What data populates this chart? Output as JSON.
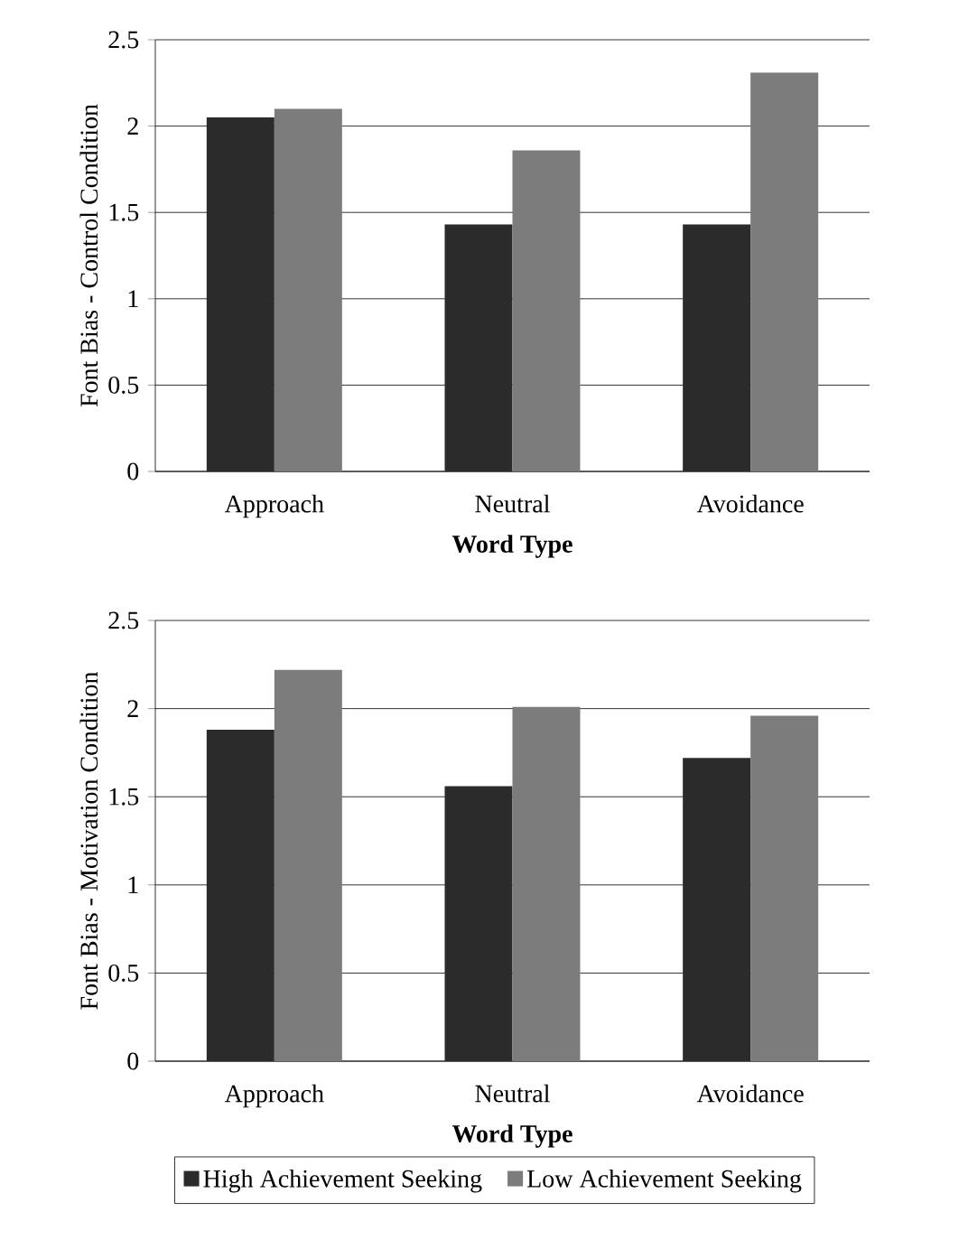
{
  "chart_data": [
    {
      "type": "bar",
      "categories": [
        "Approach",
        "Neutral",
        "Avoidance"
      ],
      "xlabel": "Word Type",
      "ylabel": "Font Bias - Control Condition",
      "ylim": [
        0,
        2.5
      ],
      "yticks": [
        0,
        0.5,
        1,
        1.5,
        2,
        2.5
      ],
      "grid": "y",
      "series": [
        {
          "color": "#2b2b2b",
          "values": [
            2.05,
            1.43,
            1.43
          ]
        },
        {
          "color": "#7c7c7c",
          "values": [
            2.1,
            1.86,
            2.31
          ]
        }
      ]
    },
    {
      "type": "bar",
      "categories": [
        "Approach",
        "Neutral",
        "Avoidance"
      ],
      "xlabel": "Word Type",
      "ylabel": "Font Bias - Motivation Condition",
      "ylim": [
        0,
        2.5
      ],
      "yticks": [
        0,
        0.5,
        1,
        1.5,
        2,
        2.5
      ],
      "grid": "y",
      "legend": "bottom",
      "series": [
        {
          "name": "High Achievement Seeking",
          "color": "#2b2b2b",
          "values": [
            1.88,
            1.56,
            1.72
          ]
        },
        {
          "name": "Low Achievement Seeking",
          "color": "#7c7c7c",
          "values": [
            2.22,
            2.01,
            1.96
          ]
        }
      ]
    }
  ]
}
